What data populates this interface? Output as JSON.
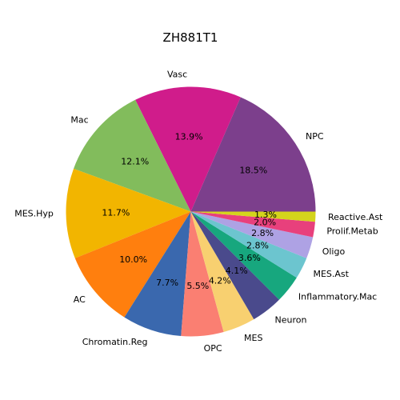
{
  "chart_data": {
    "type": "pie",
    "title": "ZH881T1",
    "start_angle_deg": 0,
    "direction": "counterclockwise",
    "slices": [
      {
        "label": "NPC",
        "value": 18.5,
        "pct_text": "18.5%",
        "color": "#7c3f8c"
      },
      {
        "label": "Vasc",
        "value": 13.9,
        "pct_text": "13.9%",
        "color": "#d01c8b"
      },
      {
        "label": "Mac",
        "value": 12.1,
        "pct_text": "12.1%",
        "color": "#82bc5c"
      },
      {
        "label": "MES.Hyp",
        "value": 11.7,
        "pct_text": "11.7%",
        "color": "#f2b500"
      },
      {
        "label": "AC",
        "value": 10.0,
        "pct_text": "10.0%",
        "color": "#ff7f0e"
      },
      {
        "label": "Chromatin.Reg",
        "value": 7.7,
        "pct_text": "7.7%",
        "color": "#3a68ae"
      },
      {
        "label": "OPC",
        "value": 5.5,
        "pct_text": "5.5%",
        "color": "#fa7f72"
      },
      {
        "label": "MES",
        "value": 4.2,
        "pct_text": "4.2%",
        "color": "#f8d070"
      },
      {
        "label": "Neuron",
        "value": 4.1,
        "pct_text": "4.1%",
        "color": "#4a4a8c"
      },
      {
        "label": "Inflammatory.Mac",
        "value": 3.6,
        "pct_text": "3.6%",
        "color": "#17a77e"
      },
      {
        "label": "MES.Ast",
        "value": 2.8,
        "pct_text": "2.8%",
        "color": "#6cc5cf"
      },
      {
        "label": "Oligo",
        "value": 2.8,
        "pct_text": "2.8%",
        "color": "#aea2e4"
      },
      {
        "label": "Prolif.Metab",
        "value": 2.0,
        "pct_text": "2.0%",
        "color": "#e8407c"
      },
      {
        "label": "Reactive.Ast",
        "value": 1.3,
        "pct_text": "1.3%",
        "color": "#d4d41c"
      }
    ]
  }
}
